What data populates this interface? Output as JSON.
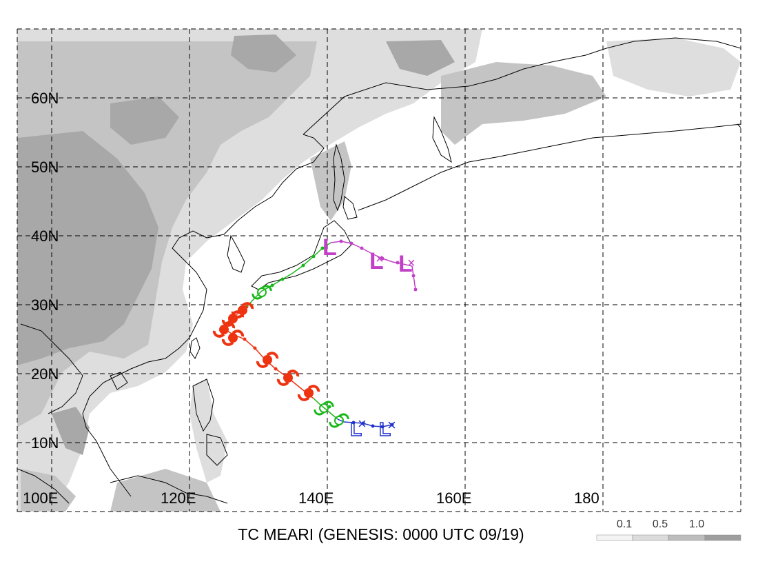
{
  "title": "TC MEARI (GENESIS: 0000 UTC 09/19)",
  "latitude_labels": [
    "60N",
    "50N",
    "40N",
    "30N",
    "20N",
    "10N"
  ],
  "longitude_labels": [
    "100E",
    "120E",
    "140E",
    "160E",
    "180"
  ],
  "legend": {
    "labels": [
      "0.1",
      "0.5",
      "1.0"
    ],
    "shades": [
      "#f4f4f4",
      "#dcdcdc",
      "#bdbdbd",
      "#9e9e9e"
    ]
  },
  "track_colors": {
    "depression_genesis": "#2233cc",
    "tropical_storm": "#19b819",
    "typhoon": "#ee3311",
    "extratropical": "#c23fc8"
  },
  "symbols": {
    "low_glyph": "L",
    "cross_glyph": "×"
  }
}
